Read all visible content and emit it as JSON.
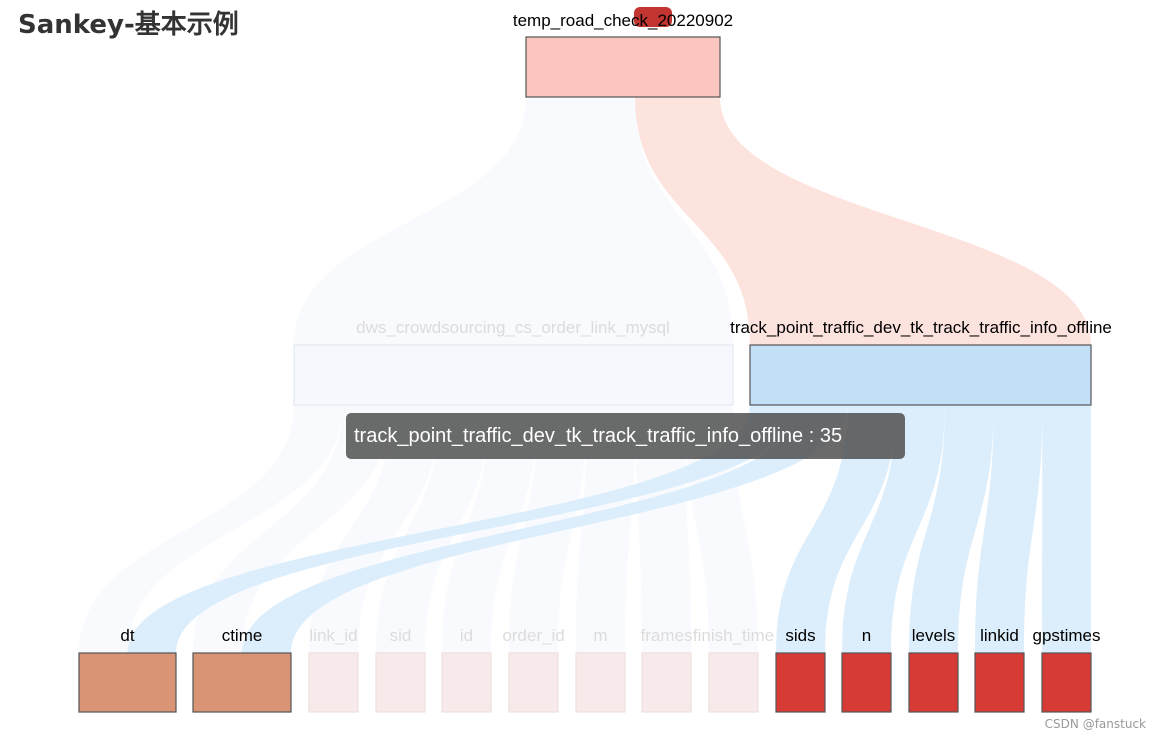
{
  "title": "Sankey-基本示例",
  "watermark": "CSDN @fanstuck",
  "tooltip": {
    "text": "track_point_traffic_dev_tk_track_traffic_info_offline : 35"
  },
  "legend": {
    "color": "#c23531"
  },
  "colors": {
    "root": "#fcc6c0",
    "mid_left": "#f5f8fd",
    "mid_right": "#c4e0f7",
    "leaf_brown": "#d89475",
    "leaf_red": "#d73b36",
    "leaf_faded": "#f8eaea",
    "link_red": "#fde3de",
    "link_blue": "#dceefb",
    "link_faded": "#f8fafd"
  },
  "chart_data": {
    "type": "sankey",
    "title": "Sankey-基本示例",
    "nodes": [
      {
        "name": "temp_road_check_20220902",
        "level": 0
      },
      {
        "name": "dws_crowdsourcing_cs_order_link_mysql",
        "level": 1
      },
      {
        "name": "track_point_traffic_dev_tk_track_traffic_info_offline",
        "level": 1
      },
      {
        "name": "dt",
        "level": 2
      },
      {
        "name": "ctime",
        "level": 2
      },
      {
        "name": "link_id",
        "level": 2
      },
      {
        "name": "sid",
        "level": 2
      },
      {
        "name": "id",
        "level": 2
      },
      {
        "name": "order_id",
        "level": 2
      },
      {
        "name": "m",
        "level": 2
      },
      {
        "name": "frames",
        "level": 2
      },
      {
        "name": "finish_time",
        "level": 2
      },
      {
        "name": "sids",
        "level": 2
      },
      {
        "name": "n",
        "level": 2
      },
      {
        "name": "levels",
        "level": 2
      },
      {
        "name": "linkid",
        "level": 2
      },
      {
        "name": "gpstimes",
        "level": 2
      }
    ],
    "links": [
      {
        "source": "temp_road_check_20220902",
        "target": "dws_crowdsourcing_cs_order_link_mysql",
        "value": 45
      },
      {
        "source": "temp_road_check_20220902",
        "target": "track_point_traffic_dev_tk_track_traffic_info_offline",
        "value": 35
      },
      {
        "source": "dws_crowdsourcing_cs_order_link_mysql",
        "target": "dt",
        "value": 5
      },
      {
        "source": "dws_crowdsourcing_cs_order_link_mysql",
        "target": "ctime",
        "value": 5
      },
      {
        "source": "dws_crowdsourcing_cs_order_link_mysql",
        "target": "link_id",
        "value": 5
      },
      {
        "source": "dws_crowdsourcing_cs_order_link_mysql",
        "target": "sid",
        "value": 5
      },
      {
        "source": "dws_crowdsourcing_cs_order_link_mysql",
        "target": "id",
        "value": 5
      },
      {
        "source": "dws_crowdsourcing_cs_order_link_mysql",
        "target": "order_id",
        "value": 5
      },
      {
        "source": "dws_crowdsourcing_cs_order_link_mysql",
        "target": "m",
        "value": 5
      },
      {
        "source": "dws_crowdsourcing_cs_order_link_mysql",
        "target": "frames",
        "value": 5
      },
      {
        "source": "dws_crowdsourcing_cs_order_link_mysql",
        "target": "finish_time",
        "value": 5
      },
      {
        "source": "track_point_traffic_dev_tk_track_traffic_info_offline",
        "target": "dt",
        "value": 5
      },
      {
        "source": "track_point_traffic_dev_tk_track_traffic_info_offline",
        "target": "ctime",
        "value": 5
      },
      {
        "source": "track_point_traffic_dev_tk_track_traffic_info_offline",
        "target": "sids",
        "value": 5
      },
      {
        "source": "track_point_traffic_dev_tk_track_traffic_info_offline",
        "target": "n",
        "value": 5
      },
      {
        "source": "track_point_traffic_dev_tk_track_traffic_info_offline",
        "target": "levels",
        "value": 5
      },
      {
        "source": "track_point_traffic_dev_tk_track_traffic_info_offline",
        "target": "linkid",
        "value": 5
      },
      {
        "source": "track_point_traffic_dev_tk_track_traffic_info_offline",
        "target": "gpstimes",
        "value": 5
      }
    ],
    "highlighted": "track_point_traffic_dev_tk_track_traffic_info_offline",
    "orientation": "vertical"
  }
}
